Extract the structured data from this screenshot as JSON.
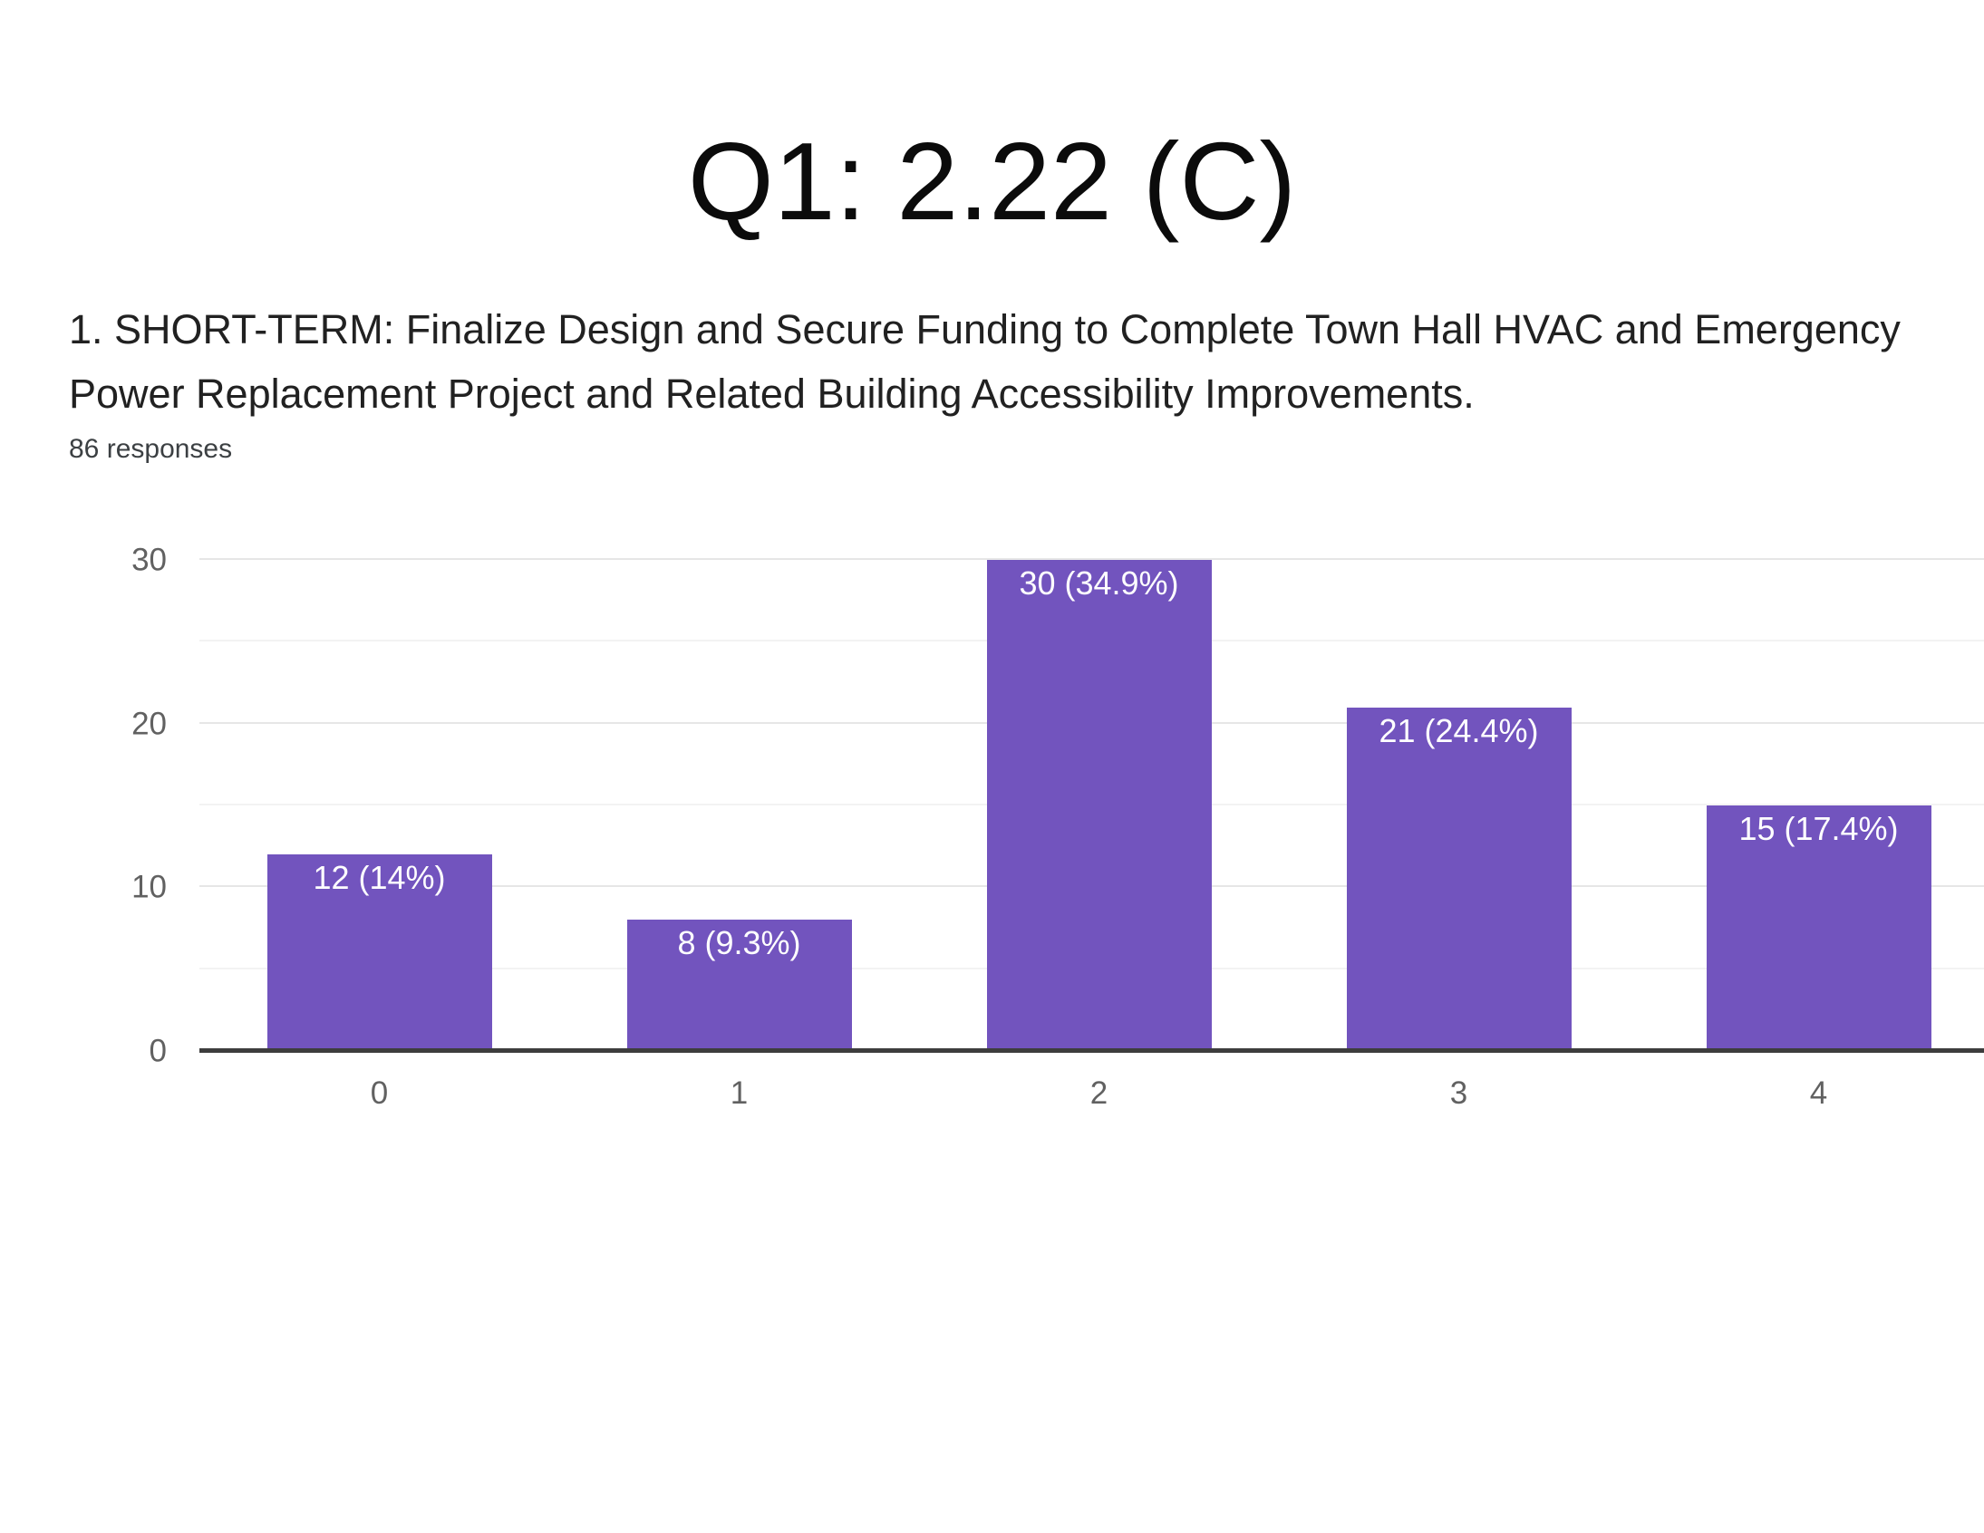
{
  "title": "Q1: 2.22 (C)",
  "question": "1. SHORT-TERM: Finalize Design and Secure Funding to Complete Town Hall HVAC and Emergency Power Replacement Project and Related Building Accessibility Improvements.",
  "question_lines": [
    "1. SHORT-TERM: Finalize Design and Secure Funding to Complete Town Hall HVAC and Emergency",
    "Power Replacement Project and Related Building Accessibility Improvements."
  ],
  "responses_text": "86 responses",
  "chart_data": {
    "type": "bar",
    "categories": [
      "0",
      "1",
      "2",
      "3",
      "4"
    ],
    "values": [
      12,
      8,
      30,
      21,
      15
    ],
    "bar_labels": [
      "12 (14%)",
      "8 (9.3%)",
      "30 (34.9%)",
      "21 (24.4%)",
      "15 (17.4%)"
    ],
    "title": "",
    "xlabel": "",
    "ylabel": "",
    "ylim": [
      0,
      30
    ],
    "yticks": [
      0,
      10,
      20,
      30
    ],
    "minor_gridlines": [
      5,
      15,
      25
    ],
    "grid": true,
    "legend": "none",
    "bar_color": "#7254be",
    "bar_label_color": "#ffffff"
  }
}
